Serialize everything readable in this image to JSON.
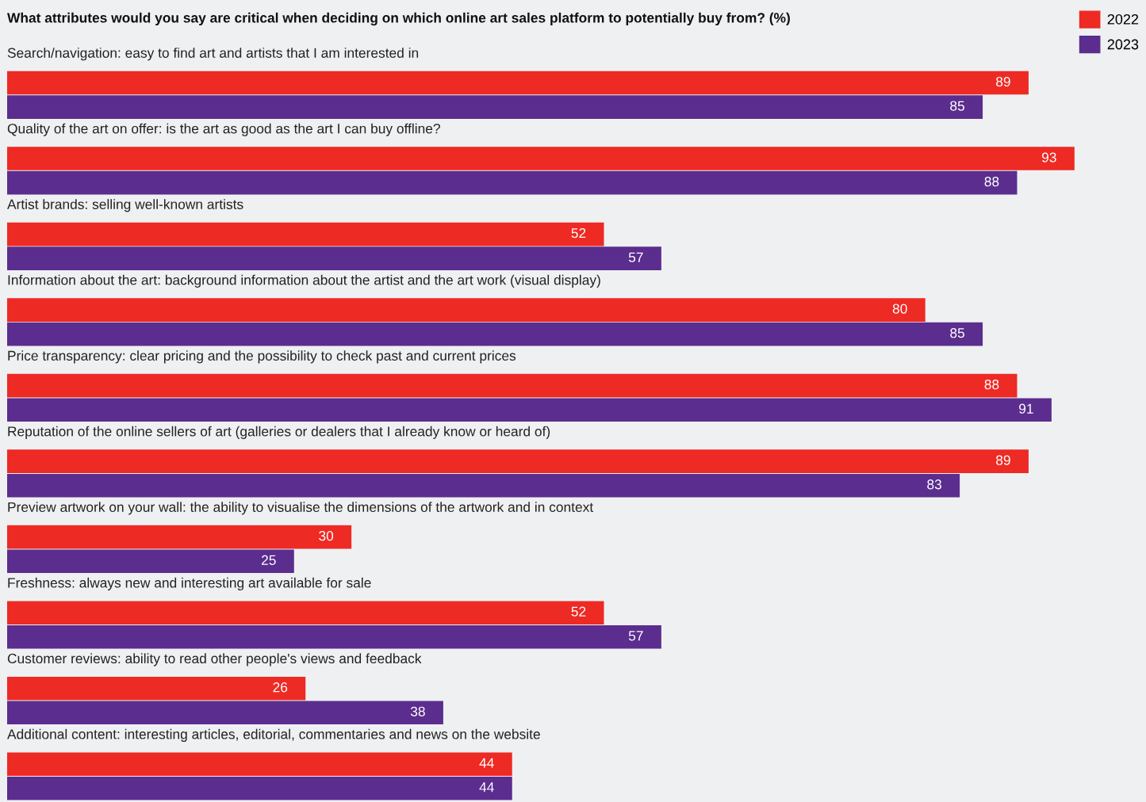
{
  "chart_data": {
    "type": "bar",
    "orientation": "horizontal",
    "title": "What attributes would you say are critical when deciding on which online art sales platform to potentially buy from? (%)",
    "categories": [
      "Search/navigation: easy to find art and artists that I am interested in",
      "Quality of the art on offer: is the art as good as the art I can buy offline?",
      "Artist brands: selling well-known artists",
      "Information about the art: background information about the artist and the art work (visual display)",
      "Price transparency: clear pricing and the possibility to check past and current prices",
      "Reputation of the online sellers of art (galleries or dealers that I already know or heard of)",
      "Preview artwork on your wall: the ability to visualise the dimensions of the artwork and in context",
      "Freshness: always new and interesting art available for sale",
      "Customer reviews: ability to read other people's views and feedback",
      "Additional content: interesting articles, editorial, commentaries and news on the website"
    ],
    "series": [
      {
        "name": "2022",
        "color": "#ee2a24",
        "values": [
          89,
          93,
          52,
          80,
          88,
          89,
          30,
          52,
          26,
          44
        ]
      },
      {
        "name": "2023",
        "color": "#5b2d8e",
        "values": [
          85,
          88,
          57,
          85,
          91,
          83,
          25,
          57,
          38,
          44
        ]
      }
    ],
    "data_labels": true,
    "legend": "top right"
  }
}
